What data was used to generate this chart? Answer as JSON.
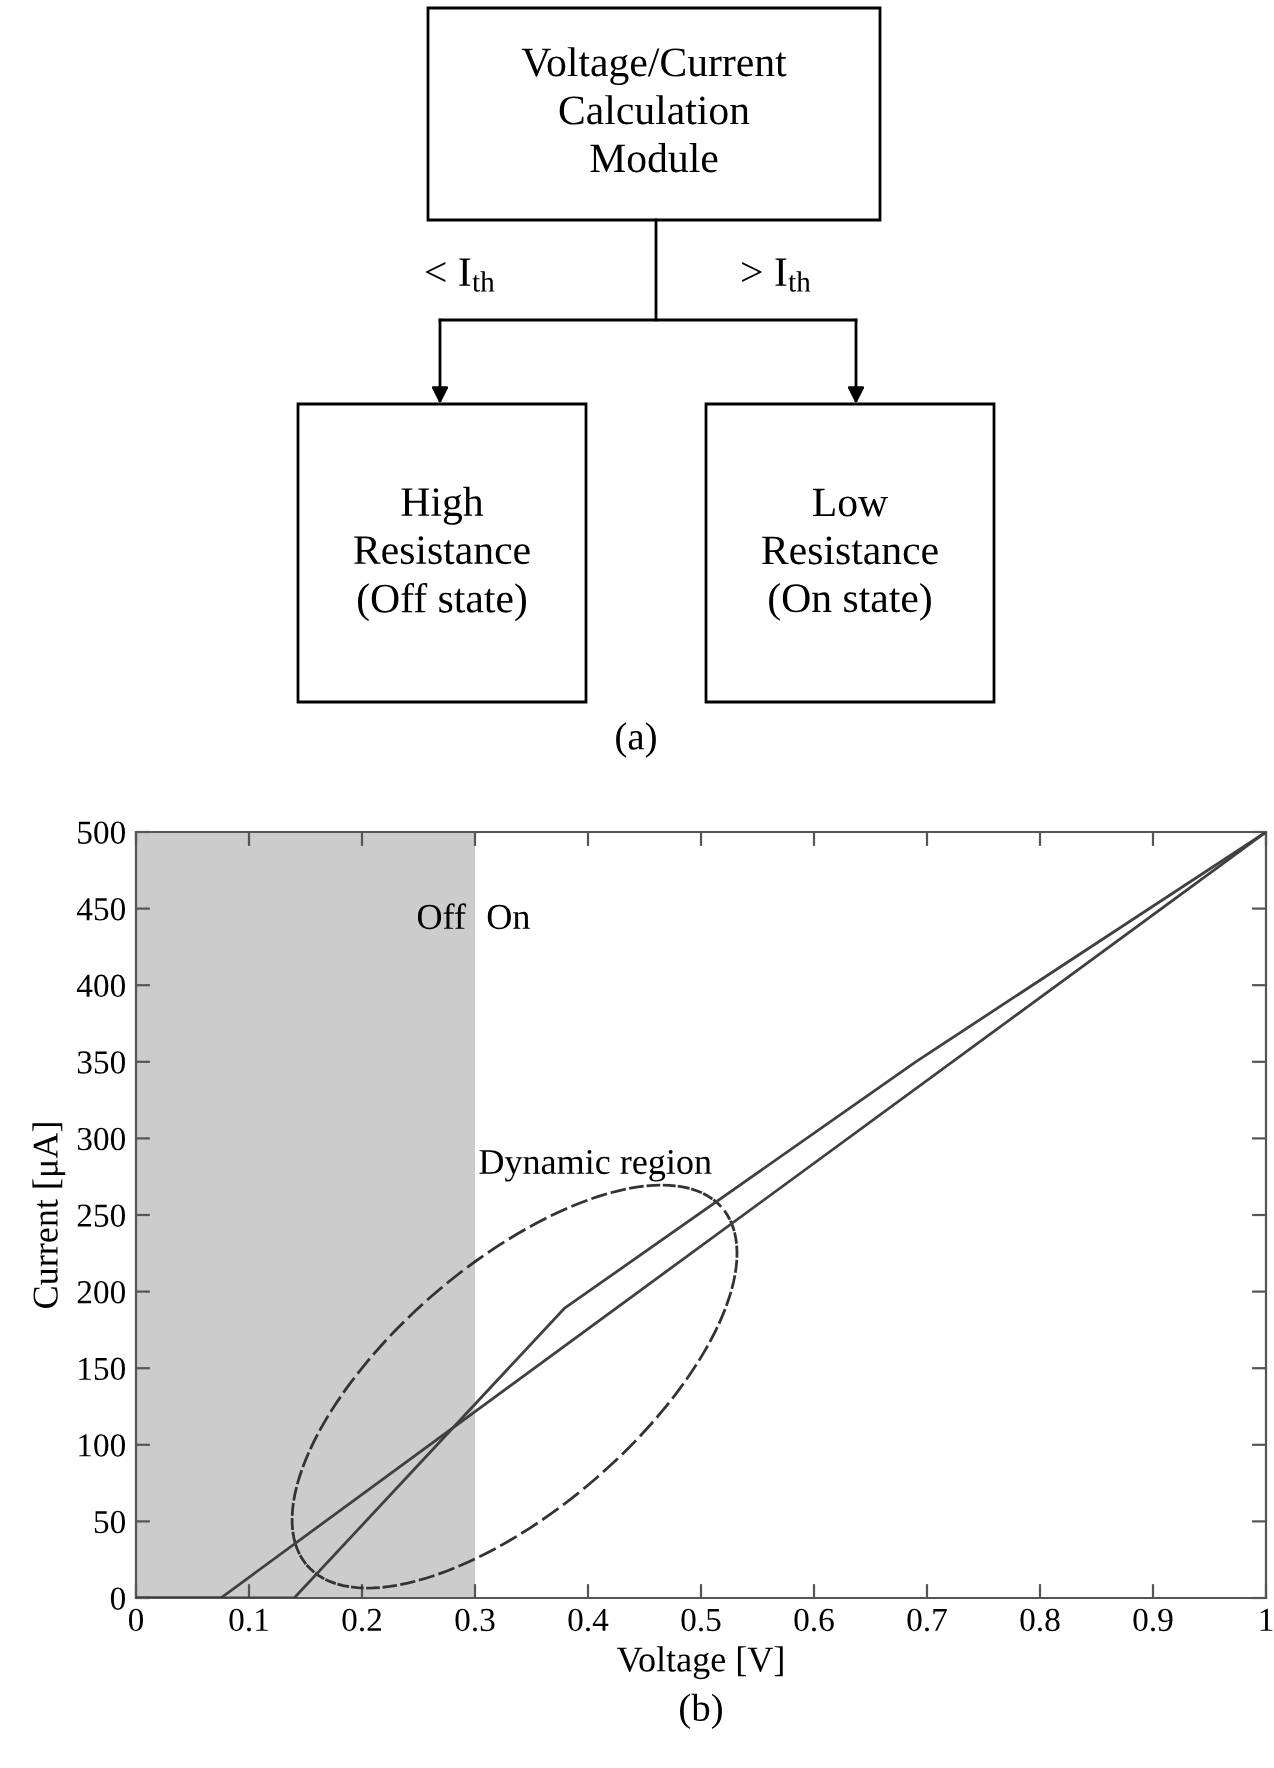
{
  "chart_data": [
    {
      "type": "other",
      "title": "(a)",
      "annotations": [
        "Voltage/Current\nCalculation\nModule",
        "< I$_{th}$",
        "> I$_{th}$",
        "High\nResistance\n(Off state)",
        "Low\nResistance\n(On state)"
      ]
    },
    {
      "type": "line",
      "title": "(b)",
      "xlabel": "Voltage [V]",
      "ylabel": "Current [μA]",
      "series": [
        {
          "color": "#404040",
          "x": [
            0,
            0.075,
            1
          ],
          "values": [
            0,
            0,
            500
          ]
        },
        {
          "color": "#404040",
          "x": [
            0,
            0.14,
            0.379,
            0.69,
            1
          ],
          "values": [
            0,
            0,
            189,
            350,
            500
          ]
        }
      ],
      "xlim": [
        0,
        1
      ],
      "ylim": [
        0,
        500
      ],
      "xticks": [
        0,
        0.1,
        0.2,
        0.3,
        0.4,
        0.5,
        0.6,
        0.7,
        0.8,
        0.9,
        1
      ],
      "yticks": [
        0,
        50,
        100,
        150,
        200,
        250,
        300,
        350,
        400,
        450,
        500
      ],
      "bands": [
        {
          "axis": "x",
          "from": 0,
          "to": 0.3,
          "color": "#cccccc"
        }
      ],
      "annotations": [
        "Off",
        "On",
        "Dynamic region"
      ],
      "grid": false,
      "legend": false
    }
  ]
}
